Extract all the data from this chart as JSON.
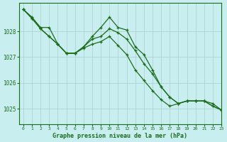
{
  "title": "Graphe pression niveau de la mer (hPa)",
  "background_color": "#c8eef0",
  "grid_color": "#aacccc",
  "line_color": "#1a6e1a",
  "xlim": [
    -0.5,
    23
  ],
  "ylim": [
    1024.4,
    1029.1
  ],
  "yticks": [
    1025,
    1026,
    1027,
    1028
  ],
  "xticks": [
    0,
    1,
    2,
    3,
    4,
    5,
    6,
    7,
    8,
    9,
    10,
    11,
    12,
    13,
    14,
    15,
    16,
    17,
    18,
    19,
    20,
    21,
    22,
    23
  ],
  "series": [
    [
      1028.85,
      1028.55,
      1028.15,
      1028.15,
      1027.5,
      1027.15,
      1027.15,
      1027.4,
      1027.8,
      1028.15,
      1028.55,
      1028.15,
      1028.05,
      1027.4,
      1027.1,
      1026.5,
      1025.85,
      1025.45,
      1025.2,
      1025.3,
      1025.3,
      1025.3,
      1025.1,
      1024.95
    ],
    [
      1028.85,
      1028.5,
      1028.1,
      1027.8,
      1027.5,
      1027.15,
      1027.15,
      1027.35,
      1027.5,
      1027.6,
      1027.8,
      1027.45,
      1027.1,
      1026.5,
      1026.1,
      1025.7,
      1025.35,
      1025.1,
      1025.2,
      1025.3,
      1025.3,
      1025.3,
      1025.2,
      1024.95
    ],
    [
      1028.85,
      1028.5,
      1028.1,
      1027.8,
      1027.5,
      1027.15,
      1027.15,
      1027.4,
      1027.7,
      1027.8,
      1028.1,
      1027.95,
      1027.7,
      1027.25,
      1026.75,
      1026.35,
      1025.85,
      1025.45,
      1025.2,
      1025.3,
      1025.3,
      1025.3,
      1025.1,
      1024.95
    ]
  ]
}
